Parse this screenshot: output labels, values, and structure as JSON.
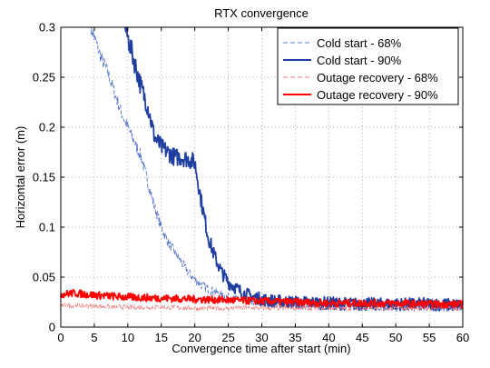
{
  "chart_data": {
    "type": "line",
    "title": "RTX convergence",
    "xlabel": "Convergence time after start (min)",
    "ylabel": "Horizontal error (m)",
    "xlim": [
      0,
      60
    ],
    "ylim": [
      0,
      0.3
    ],
    "xticks": [
      0,
      5,
      10,
      15,
      20,
      25,
      30,
      35,
      40,
      45,
      50,
      55,
      60
    ],
    "yticks": [
      0,
      0.05,
      0.1,
      0.15,
      0.2,
      0.25,
      0.3
    ],
    "xtick_labels": [
      "0",
      "5",
      "10",
      "15",
      "20",
      "25",
      "30",
      "35",
      "40",
      "45",
      "50",
      "55",
      "60"
    ],
    "ytick_labels": [
      "0",
      "0.05",
      "0.1",
      "0.15",
      "0.2",
      "0.25",
      "0.3"
    ],
    "grid": true,
    "legend_position": "top-right",
    "series": [
      {
        "name": "Cold start - 68%",
        "color": "#5a78c8",
        "dash": "dashed",
        "x": [
          4.5,
          5,
          6,
          7,
          8,
          9,
          10,
          11,
          12,
          13,
          14,
          15,
          16,
          17,
          18,
          19,
          20,
          21,
          22,
          23,
          24,
          25,
          26,
          27,
          28,
          29,
          30,
          32,
          35,
          40,
          45,
          50,
          55,
          60
        ],
        "values": [
          0.3,
          0.29,
          0.27,
          0.255,
          0.235,
          0.215,
          0.2,
          0.185,
          0.17,
          0.145,
          0.12,
          0.1,
          0.085,
          0.075,
          0.065,
          0.055,
          0.048,
          0.042,
          0.038,
          0.035,
          0.032,
          0.03,
          0.028,
          0.027,
          0.026,
          0.025,
          0.024,
          0.023,
          0.022,
          0.021,
          0.021,
          0.02,
          0.02,
          0.02
        ]
      },
      {
        "name": "Cold start - 90%",
        "color": "#1f3fa0",
        "dash": "solid",
        "x": [
          9.6,
          10,
          11,
          12,
          13,
          14,
          15,
          16,
          17,
          18,
          19,
          20,
          21,
          22,
          23,
          24,
          25,
          26,
          27,
          28,
          29,
          30,
          32,
          35,
          40,
          45,
          50,
          55,
          60
        ],
        "values": [
          0.3,
          0.29,
          0.265,
          0.24,
          0.22,
          0.19,
          0.18,
          0.175,
          0.17,
          0.17,
          0.168,
          0.165,
          0.125,
          0.09,
          0.07,
          0.055,
          0.045,
          0.04,
          0.035,
          0.032,
          0.03,
          0.028,
          0.026,
          0.025,
          0.024,
          0.023,
          0.023,
          0.023,
          0.022
        ]
      },
      {
        "name": "Outage recovery - 68%",
        "color": "#f08080",
        "dash": "dashed",
        "x": [
          0,
          5,
          10,
          15,
          20,
          25,
          30,
          35,
          40,
          45,
          50,
          55,
          60
        ],
        "values": [
          0.022,
          0.021,
          0.02,
          0.02,
          0.019,
          0.019,
          0.019,
          0.019,
          0.019,
          0.019,
          0.019,
          0.019,
          0.019
        ]
      },
      {
        "name": "Outage recovery - 90%",
        "color": "#ff0000",
        "dash": "solid",
        "x": [
          0,
          2,
          5,
          10,
          15,
          20,
          25,
          30,
          35,
          40,
          45,
          50,
          55,
          60
        ],
        "values": [
          0.033,
          0.034,
          0.032,
          0.03,
          0.029,
          0.028,
          0.027,
          0.026,
          0.025,
          0.024,
          0.024,
          0.024,
          0.023,
          0.023
        ]
      }
    ]
  }
}
